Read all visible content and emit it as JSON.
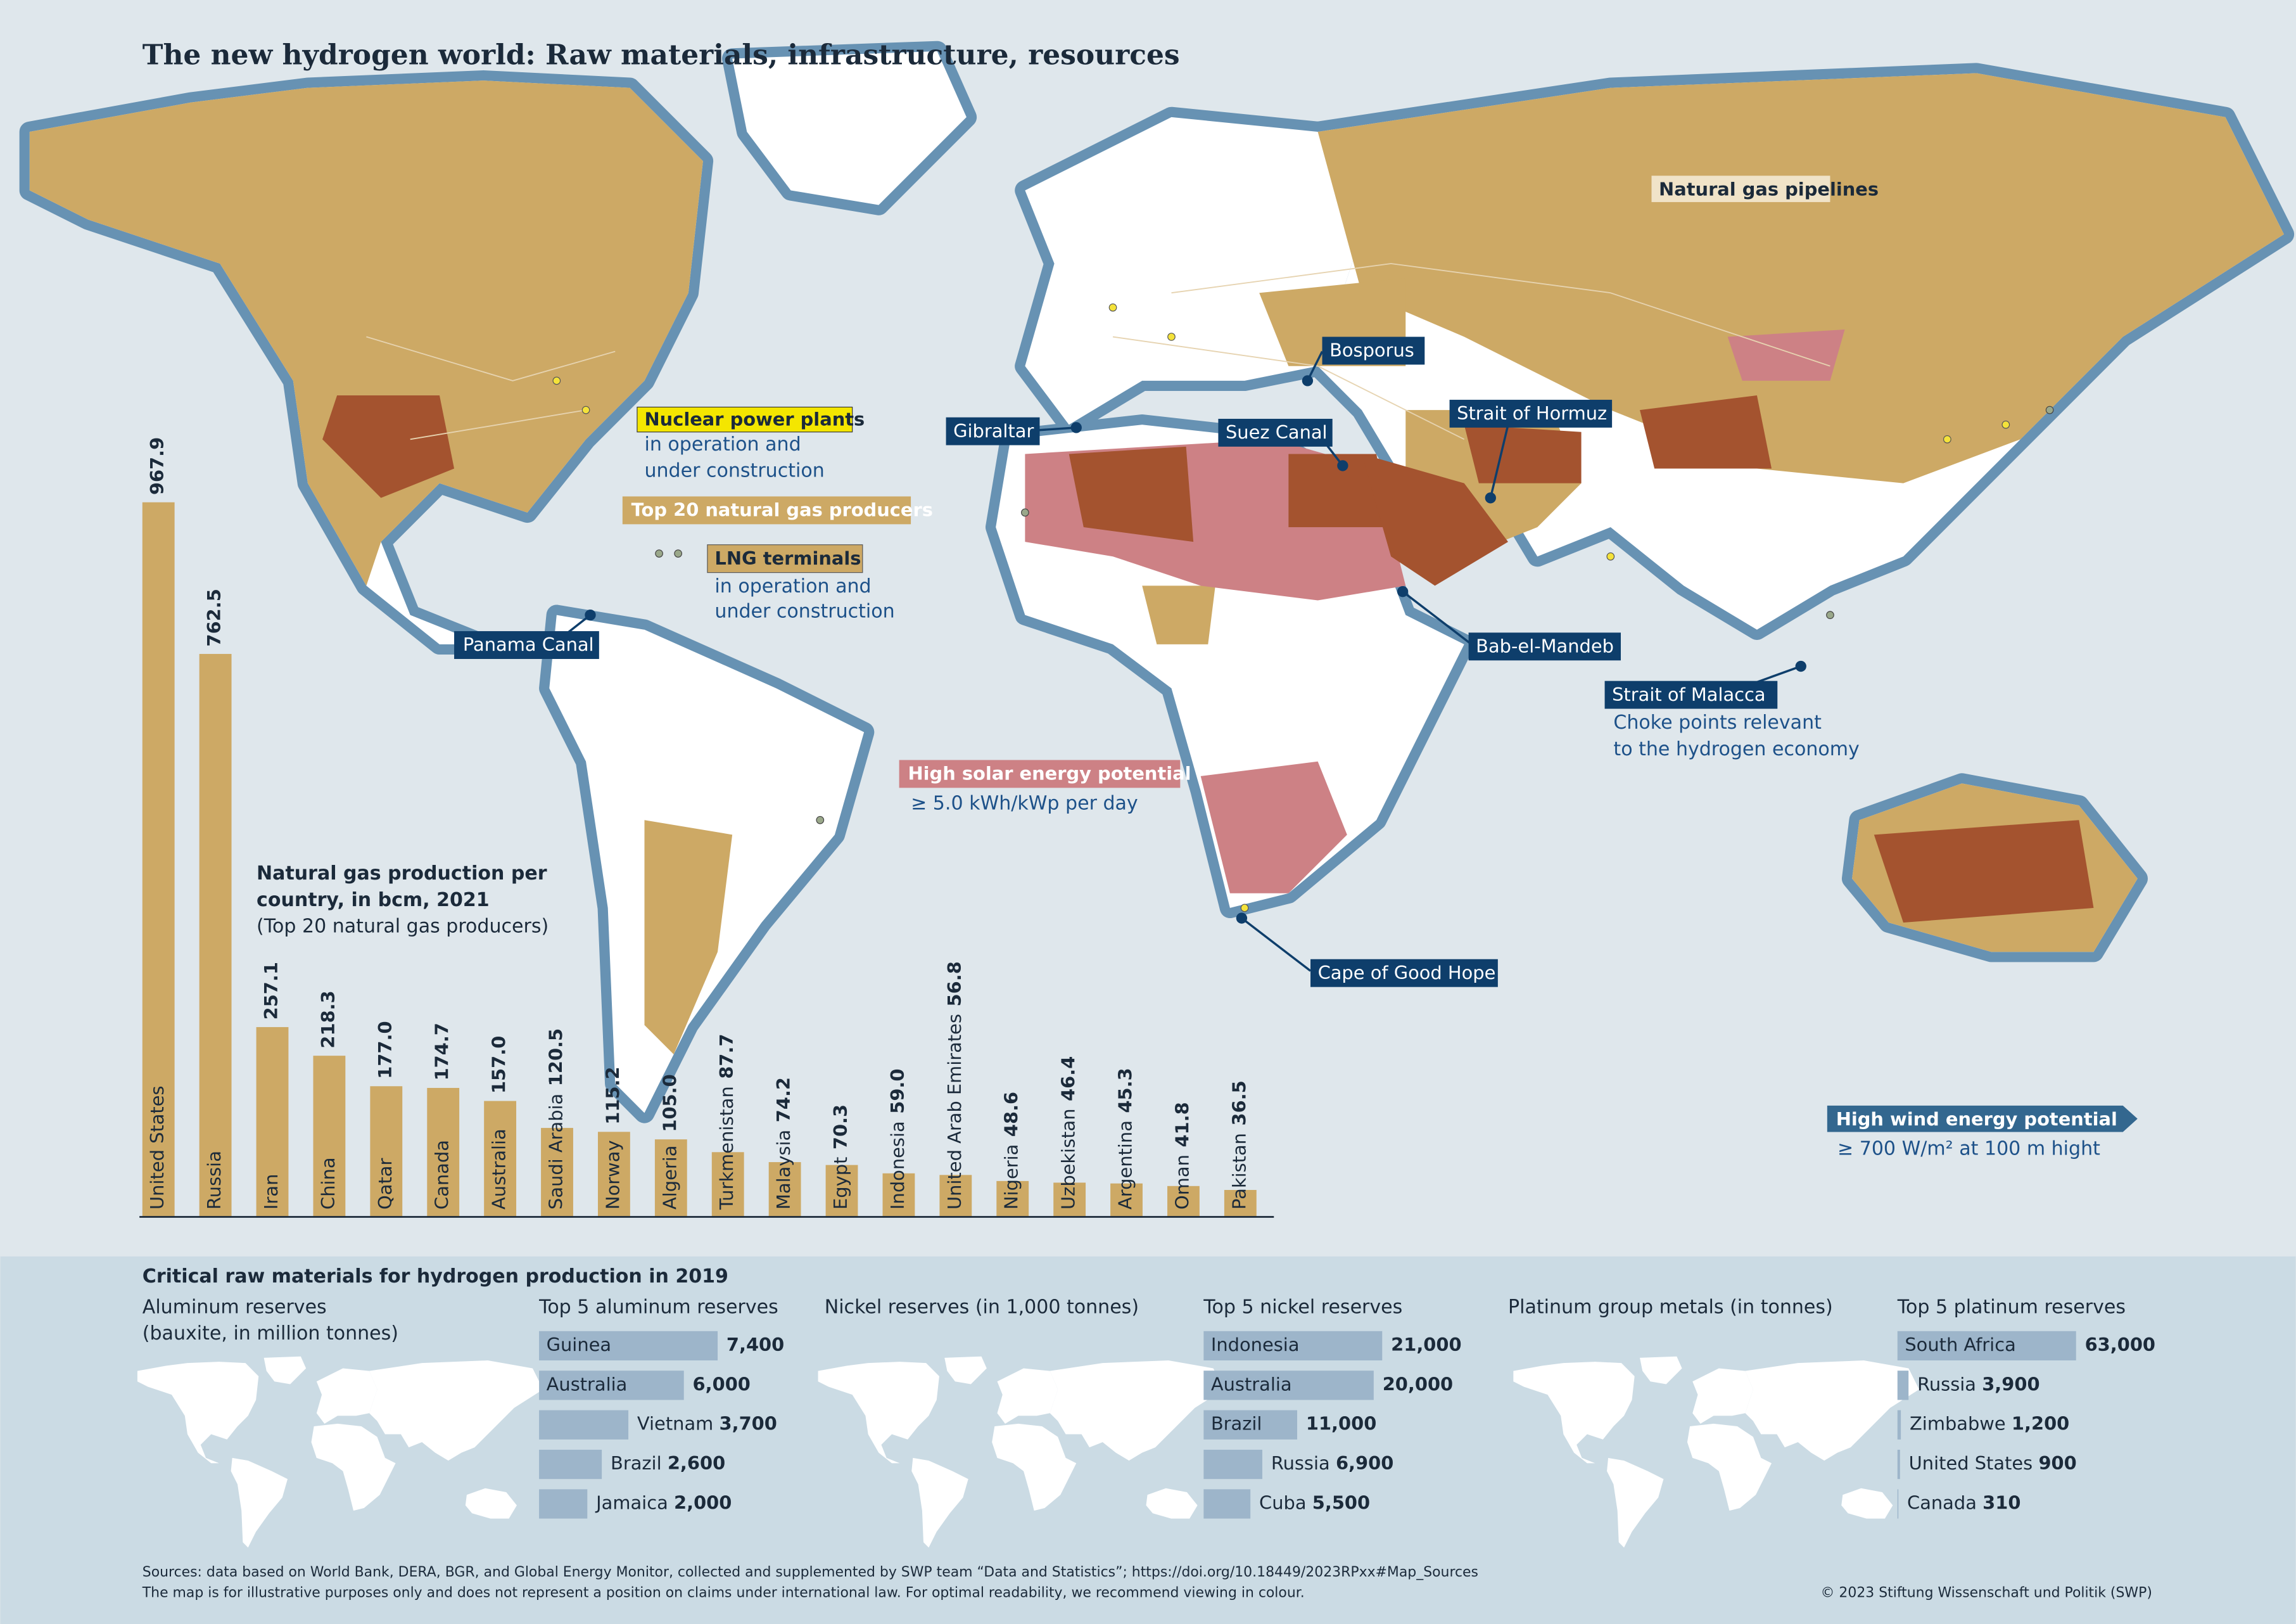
{
  "title": "The new hydrogen world: Raw materials, infrastructure, resources",
  "legend": {
    "nuclear": {
      "label": "Nuclear power plants",
      "lines": [
        "in operation and",
        "under construction"
      ]
    },
    "gas_producers": {
      "label": "Top 20 natural gas producers"
    },
    "lng": {
      "label": "LNG terminals",
      "lines": [
        "in operation and",
        "under construction"
      ]
    },
    "pipelines": {
      "label": "Natural gas pipelines"
    },
    "solar": {
      "label": "High solar energy potential",
      "lines": [
        "≥ 5.0 kWh/kWp per day"
      ]
    },
    "wind": {
      "label": "High wind energy potential",
      "lines": [
        "≥ 700 W/m² at 100 m hight"
      ]
    }
  },
  "choke_points": {
    "labels": [
      "Panama Canal",
      "Gibraltar",
      "Bosporus",
      "Suez Canal",
      "Strait of Hormuz",
      "Bab-el-Mandeb",
      "Strait of Malacca",
      "Cape of Good Hope"
    ],
    "lines": [
      "Choke points relevant",
      "to the hydrogen economy"
    ]
  },
  "raw_materials_title": "Critical raw materials for hydrogen production in 2019",
  "chart_data": [
    {
      "type": "bar",
      "title": [
        "Natural gas production per",
        "country, in bcm, 2021"
      ],
      "subtitle": "(Top 20 natural gas producers)",
      "categories": [
        "United States",
        "Russia",
        "Iran",
        "China",
        "Qatar",
        "Canada",
        "Australia",
        "Saudi Arabia",
        "Norway",
        "Algeria",
        "Turkmenistan",
        "Malaysia",
        "Egypt",
        "Indonesia",
        "United Arab Emirates",
        "Nigeria",
        "Uzbekistan",
        "Argentina",
        "Oman",
        "Pakistan"
      ],
      "values": [
        967.9,
        762.5,
        257.1,
        218.3,
        177.0,
        174.7,
        157.0,
        120.5,
        115.2,
        105.0,
        87.7,
        74.2,
        70.3,
        59.0,
        56.8,
        48.6,
        46.4,
        45.3,
        41.8,
        36.5
      ],
      "value_labels": [
        "967.9",
        "762.5",
        "257.1",
        "218.3",
        "177.0",
        "174.7",
        "157.0",
        "120.5",
        "115.2",
        "105.0",
        "87.7",
        "74.2",
        "70.3",
        "59.0",
        "56.8",
        "48.6",
        "46.4",
        "45.3",
        "41.8",
        "36.5"
      ],
      "color": "#cda965"
    },
    {
      "type": "hbar",
      "map_title": [
        "Aluminum reserves",
        "(bauxite, in million tonnes)"
      ],
      "title": "Top 5 aluminum reserves",
      "categories": [
        "Guinea",
        "Australia",
        "Vietnam",
        "Brazil",
        "Jamaica"
      ],
      "values": [
        7400,
        6000,
        3700,
        2600,
        2000
      ],
      "value_labels": [
        "7,400",
        "6,000",
        "3,700",
        "2,600",
        "2,000"
      ],
      "color": "#9db5ca"
    },
    {
      "type": "hbar",
      "map_title": [
        "Nickel reserves (in 1,000 tonnes)"
      ],
      "title": "Top 5 nickel reserves",
      "categories": [
        "Indonesia",
        "Australia",
        "Brazil",
        "Russia",
        "Cuba"
      ],
      "values": [
        21000,
        20000,
        11000,
        6900,
        5500
      ],
      "value_labels": [
        "21,000",
        "20,000",
        "11,000",
        "6,900",
        "5,500"
      ],
      "color": "#9db5ca"
    },
    {
      "type": "hbar",
      "map_title": [
        "Platinum group metals (in tonnes)"
      ],
      "title": "Top 5 platinum reserves",
      "categories": [
        "South Africa",
        "Russia",
        "Zimbabwe",
        "United States",
        "Canada"
      ],
      "values": [
        63000,
        3900,
        1200,
        900,
        310
      ],
      "value_labels": [
        "63,000",
        "3,900",
        "1,200",
        "900",
        "310"
      ],
      "color": "#9db5ca"
    }
  ],
  "sources": [
    "Sources: data based on World Bank, DERA, BGR, and Global Energy Monitor, collected and supplemented by SWP team “Data and Statistics”; https://doi.org/10.18449/2023RPxx#Map_Sources",
    "The map is for illustrative purposes only and does not represent a position on claims under international law. For optimal readability, we recommend viewing in colour."
  ],
  "copyright": "© 2023 Stiftung Wissenschaft und Politik (SWP)"
}
